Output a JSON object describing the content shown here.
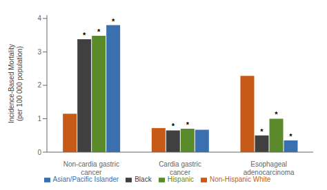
{
  "chart_data": {
    "type": "bar",
    "categories": [
      "Non-cardia gastric cancer",
      "Cardia gastric cancer",
      "Esophageal adenocarcinoma"
    ],
    "series": [
      {
        "name": "Non-Hispanic White",
        "color": "#C85A17",
        "values": [
          1.15,
          0.72,
          2.28
        ],
        "annotations": [
          null,
          null,
          null
        ]
      },
      {
        "name": "Black",
        "color": "#404040",
        "values": [
          3.38,
          0.65,
          0.5
        ],
        "annotations": [
          "*",
          "*",
          "*"
        ]
      },
      {
        "name": "Hispanic",
        "color": "#5B8A2A",
        "values": [
          3.48,
          0.7,
          1.0
        ],
        "annotations": [
          "*",
          "*",
          "*"
        ]
      },
      {
        "name": "Asian/Pacific Islander",
        "color": "#3A6FB0",
        "values": [
          3.8,
          0.67,
          0.35
        ],
        "annotations": [
          "*",
          null,
          "*"
        ]
      }
    ],
    "ylabel": "Incidence-Based Mortality\n(per 100 000 population)",
    "ylim": [
      0,
      4.1
    ],
    "yticks": [
      0,
      1,
      2,
      3,
      4
    ],
    "grid": false,
    "legend": "bottom"
  }
}
